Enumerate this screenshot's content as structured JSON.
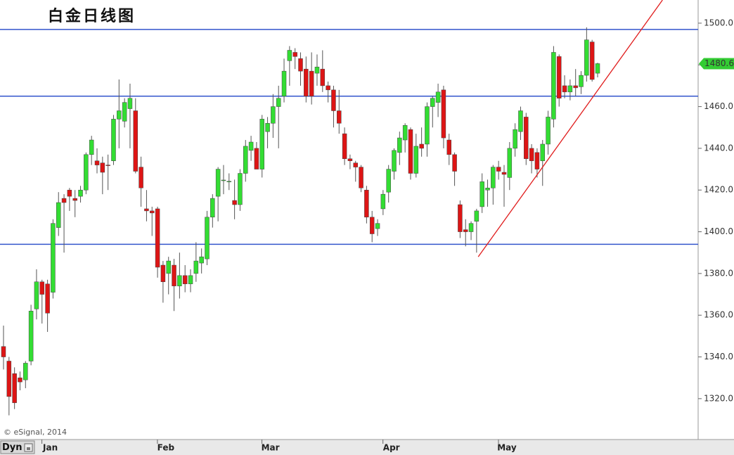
{
  "chart_data": {
    "type": "candlestick",
    "title": "白金日线图",
    "copyright": "© eSignal, 2014",
    "button": "Dyn",
    "categories": [
      null,
      null,
      null,
      null,
      null,
      null,
      null,
      null,
      "Jan",
      null,
      null,
      null,
      null,
      null,
      null,
      null,
      null,
      null,
      null,
      null,
      null,
      null,
      null,
      null,
      null,
      null,
      null,
      null,
      null,
      "Feb",
      null,
      null,
      null,
      null,
      null,
      null,
      null,
      null,
      null,
      null,
      null,
      null,
      null,
      null,
      null,
      null,
      null,
      null,
      "Mar",
      null,
      null,
      null,
      null,
      null,
      null,
      null,
      null,
      null,
      null,
      null,
      null,
      null,
      null,
      null,
      null,
      null,
      null,
      null,
      null,
      null,
      "Apr",
      null,
      null,
      null,
      null,
      null,
      null,
      null,
      null,
      null,
      null,
      null,
      null,
      null,
      null,
      null,
      null,
      null,
      null,
      null,
      null,
      "May",
      null,
      null,
      null,
      null,
      null,
      null,
      null,
      null,
      null,
      null,
      null,
      null,
      null,
      null,
      null,
      null,
      null
    ],
    "series": [
      {
        "up_color": "#33dd33",
        "down_color": "#dd1515",
        "open": [
          1345,
          1338,
          1332,
          1330,
          1329,
          1338,
          1363,
          1376,
          1375,
          1371,
          1402,
          1416,
          1420,
          1416,
          1417,
          1420,
          1437,
          1434,
          1433,
          1432,
          1434,
          1454,
          1453,
          1459,
          1458,
          1431,
          1411,
          1410,
          1411,
          1384,
          1380,
          1384,
          1374,
          1379,
          1375,
          1380,
          1385,
          1387,
          1407,
          1417,
          1424.5,
          1424,
          1415,
          1413,
          1428,
          1439,
          1440,
          1430,
          1448,
          1452,
          1460,
          1465,
          1482,
          1486,
          1483,
          1478,
          1477,
          1476,
          1478,
          1470,
          1468,
          1458,
          1447,
          1435,
          1433,
          1431,
          1420,
          1407,
          1401.5,
          1411,
          1419,
          1429,
          1438,
          1444,
          1449,
          1428,
          1442,
          1442,
          1460,
          1462,
          1468,
          1444,
          1437,
          1413,
          1401,
          1400,
          1405,
          1412,
          1420,
          1421,
          1431,
          1428.5,
          1426,
          1440,
          1448,
          1455,
          1440,
          1438,
          1434,
          1442,
          1454,
          1484,
          1470,
          1467,
          1470,
          1469.5,
          1475,
          1491,
          1476
        ],
        "high": [
          1355,
          1340,
          1335,
          1333,
          1338,
          1365,
          1382,
          1377,
          1377,
          1406,
          1419,
          1418,
          1421,
          1420,
          1422,
          1438,
          1446,
          1440,
          1436,
          1437,
          1456,
          1473,
          1464,
          1471,
          1464,
          1436,
          1420,
          1412,
          1412,
          1386,
          1388,
          1387,
          1390,
          1384,
          1382,
          1395,
          1392,
          1410,
          1418,
          1431,
          1432,
          1428,
          1425,
          1430,
          1444,
          1446,
          1443,
          1456,
          1455,
          1466,
          1470,
          1483,
          1489,
          1488,
          1486,
          1484,
          1486,
          1485,
          1487,
          1472,
          1470,
          1468,
          1450,
          1437,
          1434,
          1432,
          1422,
          1410,
          1406,
          1420,
          1432,
          1440,
          1448,
          1452,
          1450,
          1447,
          1450,
          1462,
          1465,
          1471,
          1470,
          1447,
          1438,
          1415,
          1406,
          1405,
          1411,
          1428,
          1425,
          1432,
          1434,
          1432,
          1443,
          1452,
          1460,
          1457,
          1442,
          1440,
          1444,
          1458,
          1489,
          1485,
          1475,
          1473,
          1478,
          1477,
          1498,
          1492,
          1481
        ],
        "low": [
          1334,
          1312,
          1315,
          1324,
          1325,
          1336,
          1358,
          1356,
          1352,
          1368,
          1398,
          1390,
          1410,
          1407,
          1414,
          1418,
          1432,
          1428,
          1418,
          1420,
          1432,
          1440,
          1450,
          1440,
          1428,
          1412,
          1405,
          1398,
          1378,
          1366,
          1370,
          1362,
          1368,
          1371,
          1371,
          1376,
          1380,
          1384,
          1402,
          1405,
          1418,
          1420,
          1406,
          1410,
          1424,
          1434,
          1430,
          1426,
          1440,
          1445,
          1440,
          1462,
          1470,
          1478,
          1470,
          1462,
          1461,
          1470,
          1467,
          1462,
          1450,
          1447,
          1432,
          1430,
          1424,
          1419,
          1404,
          1395,
          1398,
          1408,
          1414,
          1425,
          1432,
          1438,
          1425,
          1426,
          1436,
          1436,
          1450,
          1455,
          1440,
          1432,
          1422,
          1397,
          1393,
          1396,
          1390,
          1409,
          1412,
          1413,
          1425,
          1412,
          1420,
          1436,
          1444,
          1432,
          1428,
          1426,
          1422,
          1437,
          1450,
          1460,
          1464,
          1463,
          1465,
          1466,
          1472,
          1472,
          1474
        ],
        "close": [
          1340,
          1321,
          1318,
          1328,
          1337,
          1362,
          1376,
          1370,
          1361,
          1404,
          1414,
          1414,
          1417,
          1415,
          1420,
          1437,
          1444,
          1432,
          1428.5,
          1431.8,
          1454,
          1458,
          1462,
          1464,
          1429,
          1421,
          1410,
          1409,
          1383,
          1376,
          1386,
          1374,
          1379,
          1375,
          1379,
          1386,
          1388,
          1407,
          1416,
          1430,
          1424.8,
          1424.2,
          1413,
          1428,
          1441,
          1443,
          1430,
          1454,
          1452,
          1460,
          1464,
          1477,
          1487,
          1484,
          1477,
          1465,
          1465,
          1479,
          1470,
          1468,
          1458,
          1452,
          1435,
          1434,
          1431,
          1421,
          1407,
          1399,
          1404,
          1418,
          1430,
          1439,
          1445,
          1451,
          1428,
          1441,
          1440,
          1460,
          1464,
          1467,
          1445,
          1437,
          1429,
          1400,
          1400,
          1404,
          1410,
          1424,
          1421,
          1431,
          1429,
          1427.5,
          1440,
          1449,
          1458,
          1435,
          1434,
          1430,
          1442,
          1455,
          1486,
          1464,
          1467,
          1470,
          1469,
          1475,
          1492,
          1473,
          1480.6
        ]
      }
    ],
    "ylim": [
      1300.4,
      1511.1
    ],
    "yticks": [
      {
        "value": 1320,
        "label": "1320.0"
      },
      {
        "value": 1340,
        "label": "1340.0"
      },
      {
        "value": 1360,
        "label": "1360.0"
      },
      {
        "value": 1380,
        "label": "1380.0"
      },
      {
        "value": 1400,
        "label": "1400.0"
      },
      {
        "value": 1420,
        "label": "1420.0"
      },
      {
        "value": 1440,
        "label": "1440.0"
      },
      {
        "value": 1460,
        "label": "1460.0"
      },
      {
        "value": 1480,
        "label": "1480.0"
      },
      {
        "value": 1500,
        "label": "1500.0"
      }
    ],
    "levels": [
      1497,
      1465,
      1394
    ],
    "level_color": "#3355cc",
    "trendline": {
      "x": [
        86.3,
        119.8
      ],
      "y": [
        1388,
        1511.1
      ],
      "color": "#e01c1c"
    },
    "last_color": "#33cc33"
  }
}
